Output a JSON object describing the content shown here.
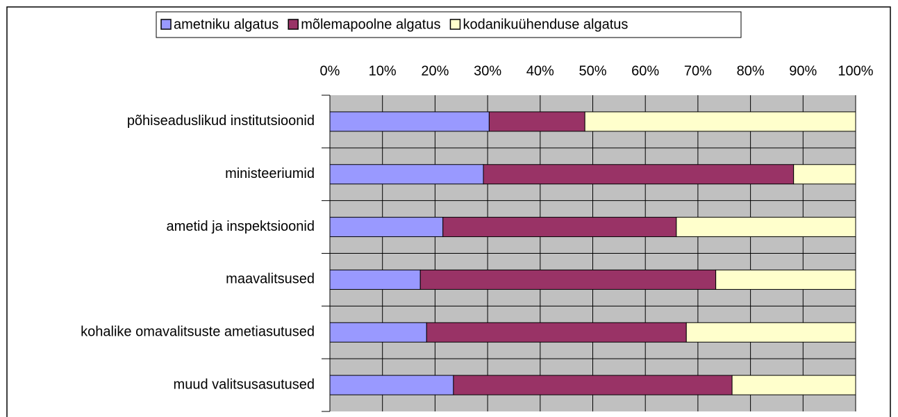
{
  "chart_data": {
    "type": "stacked_bar_horizontal",
    "categories": [
      "põhiseaduslikud institutsioonid",
      "ministeeriumid",
      "ametid ja inspektsioonid",
      "maavalitsused",
      "kohalike omavalitsuste ametiasutused",
      "muud valitsusasutused"
    ],
    "series": [
      {
        "name": "ametniku algatus",
        "color": "#9999ff",
        "values": [
          30.3,
          29.2,
          21.5,
          17.2,
          18.4,
          23.5
        ]
      },
      {
        "name": "mõlemapoolne algatus",
        "color": "#993366",
        "values": [
          18.2,
          59,
          44.4,
          56.2,
          49.4,
          53
        ]
      },
      {
        "name": "kodanikuühenduse algatus",
        "color": "#ffffcc",
        "values": [
          51.5,
          11.8,
          34.1,
          26.6,
          32.2,
          23.5
        ]
      }
    ],
    "xlim": [
      0,
      100
    ],
    "xticks": [
      {
        "value": 0,
        "label": "0%"
      },
      {
        "value": 10,
        "label": "10%"
      },
      {
        "value": 20,
        "label": "20%"
      },
      {
        "value": 30,
        "label": "30%"
      },
      {
        "value": 40,
        "label": "40%"
      },
      {
        "value": 50,
        "label": "50%"
      },
      {
        "value": 60,
        "label": "60%"
      },
      {
        "value": 70,
        "label": "70%"
      },
      {
        "value": 80,
        "label": "80%"
      },
      {
        "value": 90,
        "label": "90%"
      },
      {
        "value": 100,
        "label": "100%"
      }
    ],
    "grid": true,
    "legend": "top",
    "plot_background": "#c0c0c0"
  }
}
